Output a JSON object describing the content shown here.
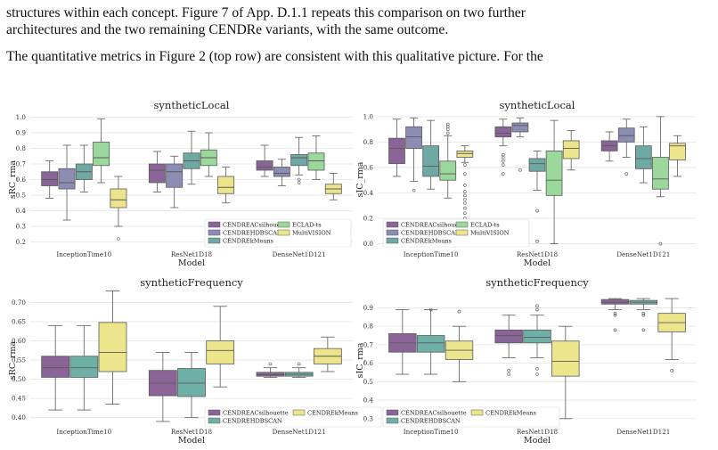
{
  "text": {
    "line1": "structures within each concept.  Figure 7 of App. D.1.1 repeats this comparison on two further",
    "line2": "architectures and the two remaining CENDRe variants, with the same outcome.",
    "line3": "The quantitative metrics in Figure 2 (top row) are consistent with this qualitative picture.  For the"
  },
  "colors": {
    "CENDREACsilhouette": "#8a6497",
    "CENDREHDBSCAN": "#8b8db3",
    "CENDREkMeans": "#6fa9a4",
    "ECLAD-ts": "#9bd89b",
    "MultiVISION": "#ece58c",
    "CENDREkMeans_freq": "#ece58c",
    "CENDREHDBSCAN_freq": "#6fb0a6"
  },
  "chart_data": [
    {
      "type": "box",
      "title": "syntheticLocal",
      "xlabel": "Model",
      "ylabel": "sRC_rma",
      "ylim": [
        0.18,
        1.02
      ],
      "yticks": [
        "0.2",
        "0.3",
        "0.4",
        "0.5",
        "0.6",
        "0.7",
        "0.8",
        "0.9",
        "1.0"
      ],
      "categories": [
        "InceptionTime10",
        "ResNet1D18",
        "DenseNet1D121"
      ],
      "legend": {
        "ncol": 2,
        "entries": [
          "CENDREACsilhouette",
          "CENDREHDBSCAN",
          "CENDREkMeans",
          "ECLAD-ts",
          "MultiVISION"
        ]
      },
      "series": [
        {
          "name": "CENDREACsilhouette",
          "boxes": [
            [
              0.48,
              0.56,
              0.6,
              0.65,
              0.72
            ],
            [
              0.52,
              0.58,
              0.66,
              0.7,
              0.78
            ],
            [
              0.62,
              0.66,
              0.68,
              0.72,
              0.82
            ]
          ],
          "outliers": [
            [],
            [],
            []
          ]
        },
        {
          "name": "CENDREHDBSCAN",
          "boxes": [
            [
              0.34,
              0.54,
              0.58,
              0.67,
              0.82
            ],
            [
              0.42,
              0.55,
              0.65,
              0.7,
              0.75
            ],
            [
              0.56,
              0.62,
              0.64,
              0.68,
              0.73
            ]
          ],
          "outliers": [
            [],
            [],
            []
          ]
        },
        {
          "name": "CENDREkMeans",
          "boxes": [
            [
              0.52,
              0.6,
              0.65,
              0.7,
              0.82
            ],
            [
              0.57,
              0.67,
              0.72,
              0.77,
              0.91
            ],
            [
              0.63,
              0.69,
              0.74,
              0.76,
              0.87
            ]
          ],
          "outliers": [
            [],
            [],
            [
              0.58,
              0.6
            ]
          ]
        },
        {
          "name": "ECLAD-ts",
          "boxes": [
            [
              0.58,
              0.69,
              0.74,
              0.84,
              0.99
            ],
            [
              0.62,
              0.69,
              0.74,
              0.79,
              0.9
            ],
            [
              0.6,
              0.66,
              0.72,
              0.77,
              0.88
            ]
          ],
          "outliers": [
            [],
            [],
            []
          ]
        },
        {
          "name": "MultiVISION",
          "boxes": [
            [
              0.3,
              0.42,
              0.47,
              0.54,
              0.62
            ],
            [
              0.45,
              0.51,
              0.55,
              0.62,
              0.68
            ],
            [
              0.47,
              0.51,
              0.54,
              0.57,
              0.64
            ]
          ],
          "outliers": [
            [
              0.22
            ],
            [],
            []
          ]
        }
      ]
    },
    {
      "type": "box",
      "title": "syntheticLocal",
      "xlabel": "Model",
      "ylabel": "sIC_rma",
      "ylim": [
        -0.01,
        1.02
      ],
      "yticks": [
        "0.0",
        "0.2",
        "0.4",
        "0.6",
        "0.8",
        "1.0"
      ],
      "categories": [
        "InceptionTime10",
        "ResNet1D18",
        "DenseNet1D121"
      ],
      "legend": {
        "ncol": 2,
        "entries": [
          "CENDREACsilhouette",
          "CENDREHDBSCAN",
          "CENDREkMeans",
          "ECLAD-ts",
          "MultiVISION"
        ]
      },
      "series": [
        {
          "name": "CENDREACsilhouette",
          "boxes": [
            [
              0.53,
              0.63,
              0.75,
              0.83,
              0.98
            ],
            [
              0.77,
              0.84,
              0.87,
              0.92,
              0.98
            ],
            [
              0.65,
              0.73,
              0.77,
              0.81,
              0.88
            ]
          ],
          "outliers": [
            [],
            [
              0.55,
              0.62,
              0.65,
              0.68,
              0.7
            ],
            []
          ]
        },
        {
          "name": "CENDREHDBSCAN",
          "boxes": [
            [
              0.49,
              0.75,
              0.84,
              0.92,
              0.99
            ],
            [
              0.84,
              0.88,
              0.93,
              0.95,
              0.99
            ],
            [
              0.68,
              0.8,
              0.85,
              0.91,
              0.98
            ]
          ],
          "outliers": [
            [
              0.42
            ],
            [
              0.58
            ],
            [
              0.55
            ]
          ]
        },
        {
          "name": "CENDREkMeans",
          "boxes": [
            [
              0.43,
              0.53,
              0.61,
              0.77,
              0.97
            ],
            [
              0.42,
              0.57,
              0.63,
              0.67,
              0.73
            ],
            [
              0.48,
              0.59,
              0.67,
              0.77,
              0.92
            ]
          ],
          "outliers": [
            [],
            [
              0.02,
              0.26
            ],
            []
          ]
        },
        {
          "name": "ECLAD-ts",
          "boxes": [
            [
              0.36,
              0.5,
              0.55,
              0.65,
              0.85
            ],
            [
              0.0,
              0.38,
              0.5,
              0.73,
              0.97
            ],
            [
              0.37,
              0.43,
              0.51,
              0.68,
              1.0
            ]
          ],
          "outliers": [
            [
              0.87,
              0.9,
              0.92,
              0.94
            ],
            [],
            [
              0.0
            ]
          ]
        },
        {
          "name": "MultiVISION",
          "boxes": [
            [
              0.64,
              0.68,
              0.71,
              0.73,
              0.77
            ],
            [
              0.58,
              0.67,
              0.75,
              0.81,
              0.89
            ],
            [
              0.53,
              0.66,
              0.77,
              0.79,
              0.85
            ]
          ],
          "outliers": [
            [
              0.2,
              0.24,
              0.28,
              0.32,
              0.35,
              0.38,
              0.41,
              0.46,
              0.55,
              0.62
            ],
            [],
            []
          ]
        }
      ]
    },
    {
      "type": "box",
      "title": "syntheticFrequency",
      "xlabel": "Model",
      "ylabel": "sRC_rma",
      "ylim": [
        0.383,
        0.715
      ],
      "yticks": [
        "0.40",
        "0.45",
        "0.50",
        "0.55",
        "0.60",
        "0.65",
        "0.70"
      ],
      "categories": [
        "InceptionTime10",
        "ResNet1D18",
        "DenseNet1D121"
      ],
      "legend": {
        "ncol": 2,
        "entries": [
          "CENDREACsilhouette",
          "CENDREHDBSCAN",
          "CENDREkMeans"
        ]
      },
      "series": [
        {
          "name": "CENDREACsilhouette",
          "boxes": [
            [
              0.42,
              0.505,
              0.53,
              0.56,
              0.64
            ],
            [
              0.39,
              0.457,
              0.49,
              0.523,
              0.57
            ],
            [
              0.505,
              0.508,
              0.512,
              0.518,
              0.53
            ]
          ],
          "outliers": [
            [],
            [],
            [
              0.54
            ]
          ]
        },
        {
          "name": "CENDREHDBSCAN",
          "boxes": [
            [
              0.42,
              0.505,
              0.53,
              0.56,
              0.64
            ],
            [
              0.4,
              0.455,
              0.49,
              0.528,
              0.57
            ],
            [
              0.505,
              0.508,
              0.513,
              0.518,
              0.53
            ]
          ],
          "outliers": [
            [],
            [],
            [
              0.54
            ]
          ]
        },
        {
          "name": "CENDREkMeans",
          "boxes": [
            [
              0.435,
              0.52,
              0.57,
              0.648,
              0.73
            ],
            [
              0.48,
              0.54,
              0.575,
              0.6,
              0.69
            ],
            [
              0.52,
              0.54,
              0.56,
              0.58,
              0.61
            ]
          ],
          "outliers": [
            [],
            [],
            []
          ]
        }
      ]
    },
    {
      "type": "box",
      "title": "syntheticFrequency",
      "xlabel": "Model",
      "ylabel": "sIC_rma",
      "ylim": [
        0.27,
        0.96
      ],
      "yticks": [
        "0.3",
        "0.4",
        "0.5",
        "0.6",
        "0.7",
        "0.8",
        "0.9"
      ],
      "categories": [
        "InceptionTime10",
        "ResNet1D18",
        "DenseNet1D121"
      ],
      "legend": {
        "ncol": 2,
        "entries": [
          "CENDREACsilhouette",
          "CENDREHDBSCAN",
          "CENDREkMeans"
        ]
      },
      "series": [
        {
          "name": "CENDREACsilhouette",
          "boxes": [
            [
              0.54,
              0.66,
              0.71,
              0.76,
              0.89
            ],
            [
              0.63,
              0.71,
              0.75,
              0.78,
              0.86
            ],
            [
              0.89,
              0.92,
              0.93,
              0.945,
              0.95
            ]
          ],
          "outliers": [
            [],
            [
              0.54,
              0.56
            ],
            [
              0.78,
              0.86,
              0.87
            ]
          ]
        },
        {
          "name": "CENDREHDBSCAN",
          "boxes": [
            [
              0.54,
              0.66,
              0.71,
              0.75,
              0.89
            ],
            [
              0.63,
              0.71,
              0.74,
              0.78,
              0.86
            ],
            [
              0.89,
              0.92,
              0.93,
              0.94,
              0.95
            ]
          ],
          "outliers": [
            [
              0.89
            ],
            [
              0.54,
              0.57,
              0.89,
              0.91
            ],
            [
              0.78,
              0.86,
              0.87
            ]
          ]
        },
        {
          "name": "CENDREkMeans",
          "boxes": [
            [
              0.5,
              0.62,
              0.67,
              0.72,
              0.8
            ],
            [
              0.3,
              0.53,
              0.61,
              0.72,
              0.8
            ],
            [
              0.62,
              0.77,
              0.82,
              0.87,
              0.95
            ]
          ],
          "outliers": [
            [
              0.88
            ],
            [],
            [
              0.56
            ]
          ]
        }
      ]
    }
  ]
}
